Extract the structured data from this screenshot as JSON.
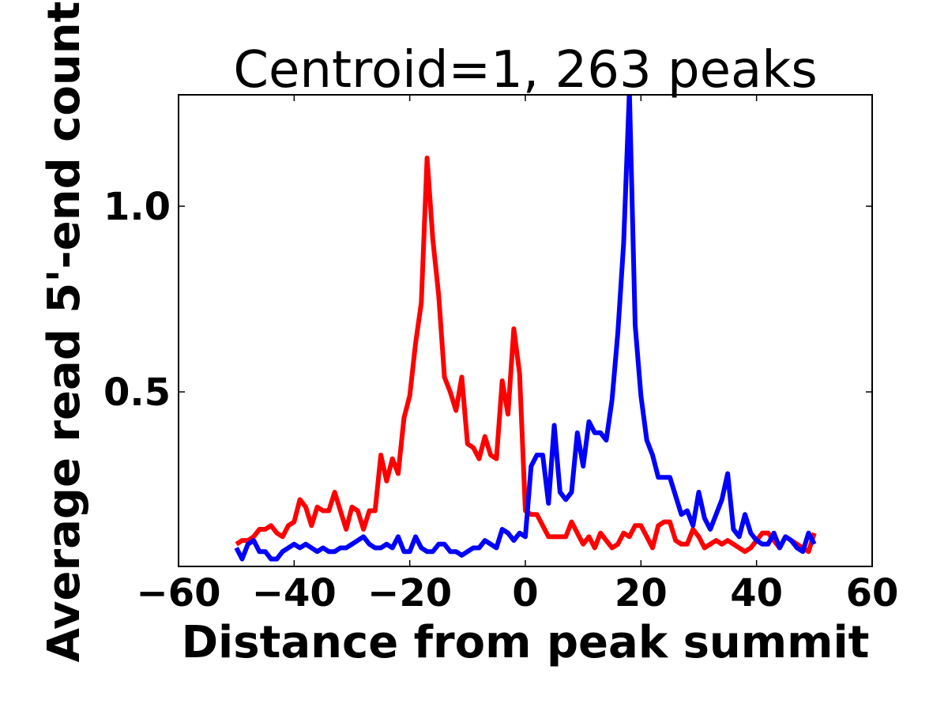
{
  "chart_data": {
    "type": "line",
    "title": "Centroid=1, 263 peaks",
    "xlabel": "Distance from peak summit",
    "ylabel": "Average read 5'-end count",
    "xlim": [
      -60,
      60
    ],
    "ylim": [
      0.03,
      1.3
    ],
    "xticks": [
      -60,
      -40,
      -20,
      0,
      20,
      40,
      60
    ],
    "xtick_labels": [
      "−60",
      "−40",
      "−20",
      "0",
      "20",
      "40",
      "60"
    ],
    "yticks": [
      0.5,
      1.0
    ],
    "ytick_labels": [
      "0.5",
      "1.0"
    ],
    "grid": false,
    "x": [
      -50,
      -49,
      -48,
      -47,
      -46,
      -45,
      -44,
      -43,
      -42,
      -41,
      -40,
      -39,
      -38,
      -37,
      -36,
      -35,
      -34,
      -33,
      -32,
      -31,
      -30,
      -29,
      -28,
      -27,
      -26,
      -25,
      -24,
      -23,
      -22,
      -21,
      -20,
      -19,
      -18,
      -17,
      -16,
      -15,
      -14,
      -13,
      -12,
      -11,
      -10,
      -9,
      -8,
      -7,
      -6,
      -5,
      -4,
      -3,
      -2,
      -1,
      0,
      1,
      2,
      3,
      4,
      5,
      6,
      7,
      8,
      9,
      10,
      11,
      12,
      13,
      14,
      15,
      16,
      17,
      18,
      19,
      20,
      21,
      22,
      23,
      24,
      25,
      26,
      27,
      28,
      29,
      30,
      31,
      32,
      33,
      34,
      35,
      36,
      37,
      38,
      39,
      40,
      41,
      42,
      43,
      44,
      45,
      46,
      47,
      48,
      49,
      50
    ],
    "series": [
      {
        "color": "#ff0000",
        "values": [
          0.09,
          0.1,
          0.1,
          0.11,
          0.13,
          0.13,
          0.14,
          0.12,
          0.11,
          0.14,
          0.15,
          0.21,
          0.19,
          0.14,
          0.19,
          0.18,
          0.18,
          0.23,
          0.18,
          0.13,
          0.19,
          0.18,
          0.13,
          0.18,
          0.18,
          0.33,
          0.26,
          0.32,
          0.28,
          0.43,
          0.49,
          0.63,
          0.74,
          1.13,
          0.91,
          0.76,
          0.54,
          0.5,
          0.45,
          0.54,
          0.36,
          0.35,
          0.32,
          0.38,
          0.33,
          0.32,
          0.53,
          0.44,
          0.67,
          0.55,
          0.18,
          0.17,
          0.17,
          0.14,
          0.11,
          0.11,
          0.11,
          0.11,
          0.15,
          0.12,
          0.09,
          0.11,
          0.08,
          0.12,
          0.1,
          0.08,
          0.09,
          0.12,
          0.11,
          0.14,
          0.14,
          0.11,
          0.08,
          0.14,
          0.15,
          0.15,
          0.1,
          0.09,
          0.09,
          0.13,
          0.11,
          0.08,
          0.09,
          0.1,
          0.09,
          0.1,
          0.09,
          0.08,
          0.07,
          0.08,
          0.1,
          0.12,
          0.12,
          0.1,
          0.08,
          0.11,
          0.1,
          0.09,
          0.08,
          0.07,
          0.12
        ]
      },
      {
        "color": "#0000ff",
        "values": [
          0.08,
          0.05,
          0.09,
          0.1,
          0.07,
          0.07,
          0.05,
          0.05,
          0.07,
          0.08,
          0.09,
          0.08,
          0.09,
          0.08,
          0.07,
          0.08,
          0.07,
          0.07,
          0.08,
          0.08,
          0.09,
          0.1,
          0.11,
          0.09,
          0.08,
          0.08,
          0.09,
          0.08,
          0.11,
          0.07,
          0.07,
          0.11,
          0.08,
          0.07,
          0.07,
          0.09,
          0.09,
          0.07,
          0.07,
          0.06,
          0.07,
          0.08,
          0.08,
          0.1,
          0.09,
          0.08,
          0.13,
          0.12,
          0.1,
          0.12,
          0.11,
          0.3,
          0.33,
          0.33,
          0.2,
          0.41,
          0.23,
          0.21,
          0.23,
          0.39,
          0.3,
          0.42,
          0.39,
          0.39,
          0.37,
          0.48,
          0.66,
          0.9,
          1.31,
          0.68,
          0.49,
          0.37,
          0.33,
          0.27,
          0.27,
          0.27,
          0.22,
          0.17,
          0.18,
          0.14,
          0.23,
          0.16,
          0.13,
          0.17,
          0.21,
          0.28,
          0.13,
          0.11,
          0.17,
          0.12,
          0.1,
          0.09,
          0.09,
          0.12,
          0.08,
          0.11,
          0.1,
          0.08,
          0.07,
          0.12,
          0.09
        ]
      }
    ]
  }
}
